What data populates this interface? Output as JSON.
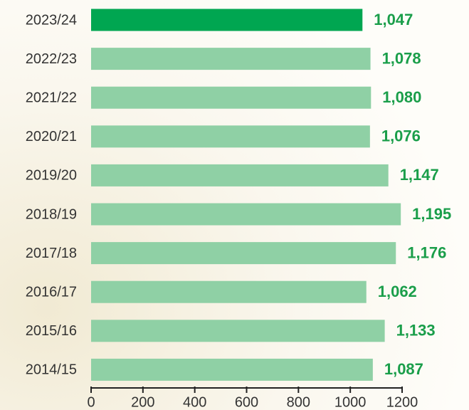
{
  "chart_data": {
    "type": "bar",
    "orientation": "horizontal",
    "categories": [
      "2023/24",
      "2022/23",
      "2021/22",
      "2020/21",
      "2019/20",
      "2018/19",
      "2017/18",
      "2016/17",
      "2015/16",
      "2014/15"
    ],
    "values": [
      1047,
      1078,
      1080,
      1076,
      1147,
      1195,
      1176,
      1062,
      1133,
      1087
    ],
    "value_labels": [
      "1,047",
      "1,078",
      "1,080",
      "1,076",
      "1,147",
      "1,195",
      "1,176",
      "1,062",
      "1,133",
      "1,087"
    ],
    "colors": [
      "#00a651",
      "#8fd0a5",
      "#8fd0a5",
      "#8fd0a5",
      "#8fd0a5",
      "#8fd0a5",
      "#8fd0a5",
      "#8fd0a5",
      "#8fd0a5",
      "#8fd0a5"
    ],
    "xlim": [
      0,
      1200
    ],
    "xticks": [
      0,
      200,
      400,
      600,
      800,
      1000,
      1200
    ]
  }
}
